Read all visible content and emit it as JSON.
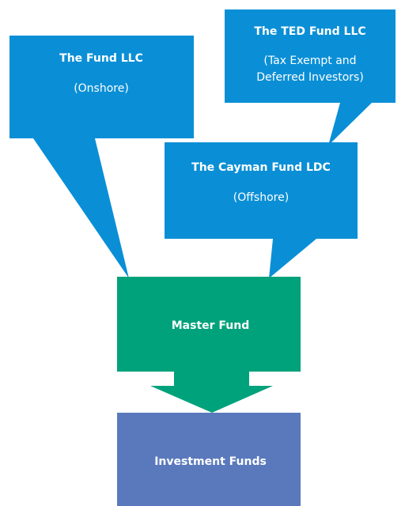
{
  "nodes": [
    {
      "title": "The Fund LLC",
      "subtitle": "(Onshore)"
    },
    {
      "title": "The TED Fund LLC",
      "subtitle": "(Tax Exempt and Deferred Investors)"
    },
    {
      "title": "The Cayman Fund LDC",
      "subtitle": "(Offshore)"
    },
    {
      "title": "Master Fund"
    },
    {
      "title": "Investment Funds"
    }
  ]
}
